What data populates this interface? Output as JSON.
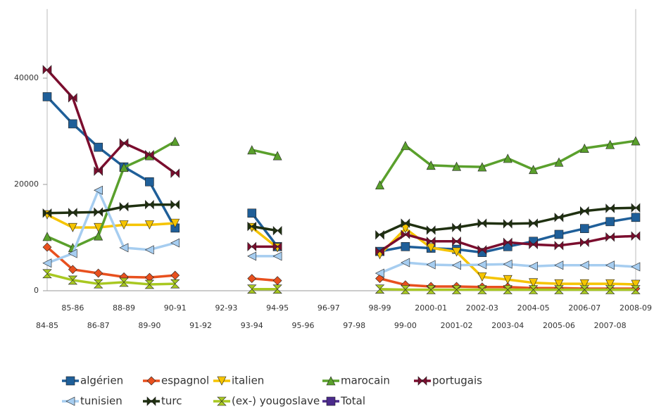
{
  "chart_data": {
    "type": "line",
    "categories": [
      "84-85",
      "85-86",
      "86-87",
      "88-89",
      "89-90",
      "90-91",
      "91-92",
      "92-93",
      "93-94",
      "94-95",
      "95-96",
      "96-97",
      "97-98",
      "98-99",
      "99-00",
      "2000-01",
      "2001-02",
      "2002-03",
      "2003-04",
      "2004-05",
      "2005-06",
      "2006-07",
      "2007-08",
      "2008-09"
    ],
    "ylim": [
      0,
      53000
    ],
    "yticks": [
      0,
      20000,
      40000
    ],
    "grid": false,
    "legend": "bottom",
    "series": [
      {
        "name": "algérien",
        "color": "#1f5f99",
        "marker": "square",
        "values": [
          36500,
          31400,
          27000,
          23300,
          20500,
          11800,
          null,
          null,
          14600,
          8300,
          null,
          null,
          null,
          7400,
          8300,
          8000,
          7800,
          7200,
          8300,
          9300,
          10600,
          11700,
          13000,
          13800
        ]
      },
      {
        "name": "espagnol",
        "color": "#e8501e",
        "marker": "diamond",
        "values": [
          8200,
          4000,
          3300,
          2600,
          2500,
          2900,
          null,
          null,
          2300,
          1900,
          null,
          null,
          null,
          2300,
          1100,
          800,
          800,
          700,
          700,
          500,
          500,
          400,
          400,
          400
        ]
      },
      {
        "name": "italien",
        "color": "#f5c400",
        "marker": "tri-down",
        "values": [
          14300,
          11900,
          11900,
          12400,
          12400,
          12700,
          null,
          null,
          11900,
          8100,
          null,
          null,
          null,
          6800,
          11700,
          8100,
          7300,
          2600,
          2100,
          1500,
          1300,
          1300,
          1300,
          1200
        ]
      },
      {
        "name": "marocain",
        "color": "#5aa02c",
        "marker": "tri-up",
        "values": [
          10200,
          8100,
          10300,
          23200,
          25400,
          28100,
          null,
          null,
          26500,
          25400,
          null,
          null,
          null,
          19900,
          27300,
          23600,
          23400,
          23300,
          24900,
          22800,
          24200,
          26800,
          27500,
          28200
        ]
      },
      {
        "name": "portugais",
        "color": "#7b0d2e",
        "marker": "bowtie",
        "values": [
          41600,
          36300,
          22500,
          27800,
          25600,
          22100,
          null,
          null,
          8300,
          8300,
          null,
          null,
          null,
          7400,
          10600,
          9300,
          9300,
          7700,
          9100,
          8700,
          8500,
          9100,
          10100,
          10300
        ]
      },
      {
        "name": "tunisien",
        "color": "#a6cdf0",
        "marker": "tri-left",
        "values": [
          5200,
          7000,
          18900,
          8100,
          7700,
          9000,
          null,
          null,
          6500,
          6500,
          null,
          null,
          null,
          3300,
          5300,
          4900,
          4800,
          4900,
          5000,
          4600,
          4800,
          4800,
          4800,
          4500
        ]
      },
      {
        "name": "turc",
        "color": "#1f3010",
        "marker": "bowtie",
        "values": [
          14600,
          14700,
          14800,
          15800,
          16200,
          16200,
          null,
          null,
          12100,
          11300,
          null,
          null,
          null,
          10500,
          12700,
          11400,
          11900,
          12700,
          12600,
          12700,
          13800,
          15000,
          15500,
          15600
        ]
      },
      {
        "name": "(ex-) yougoslave",
        "color": "#a8c821",
        "marker": "hourglass",
        "values": [
          3200,
          2000,
          1300,
          1600,
          1200,
          1300,
          null,
          null,
          300,
          300,
          null,
          null,
          null,
          300,
          200,
          200,
          200,
          200,
          200,
          200,
          200,
          200,
          200,
          200
        ]
      },
      {
        "name": "Total",
        "color": "#4b2a8c",
        "marker": "square",
        "values": [
          null,
          null,
          null,
          null,
          null,
          null,
          null,
          null,
          null,
          null,
          null,
          null,
          null,
          null,
          null,
          null,
          null,
          null,
          null,
          null,
          null,
          null,
          null,
          null
        ]
      }
    ]
  }
}
